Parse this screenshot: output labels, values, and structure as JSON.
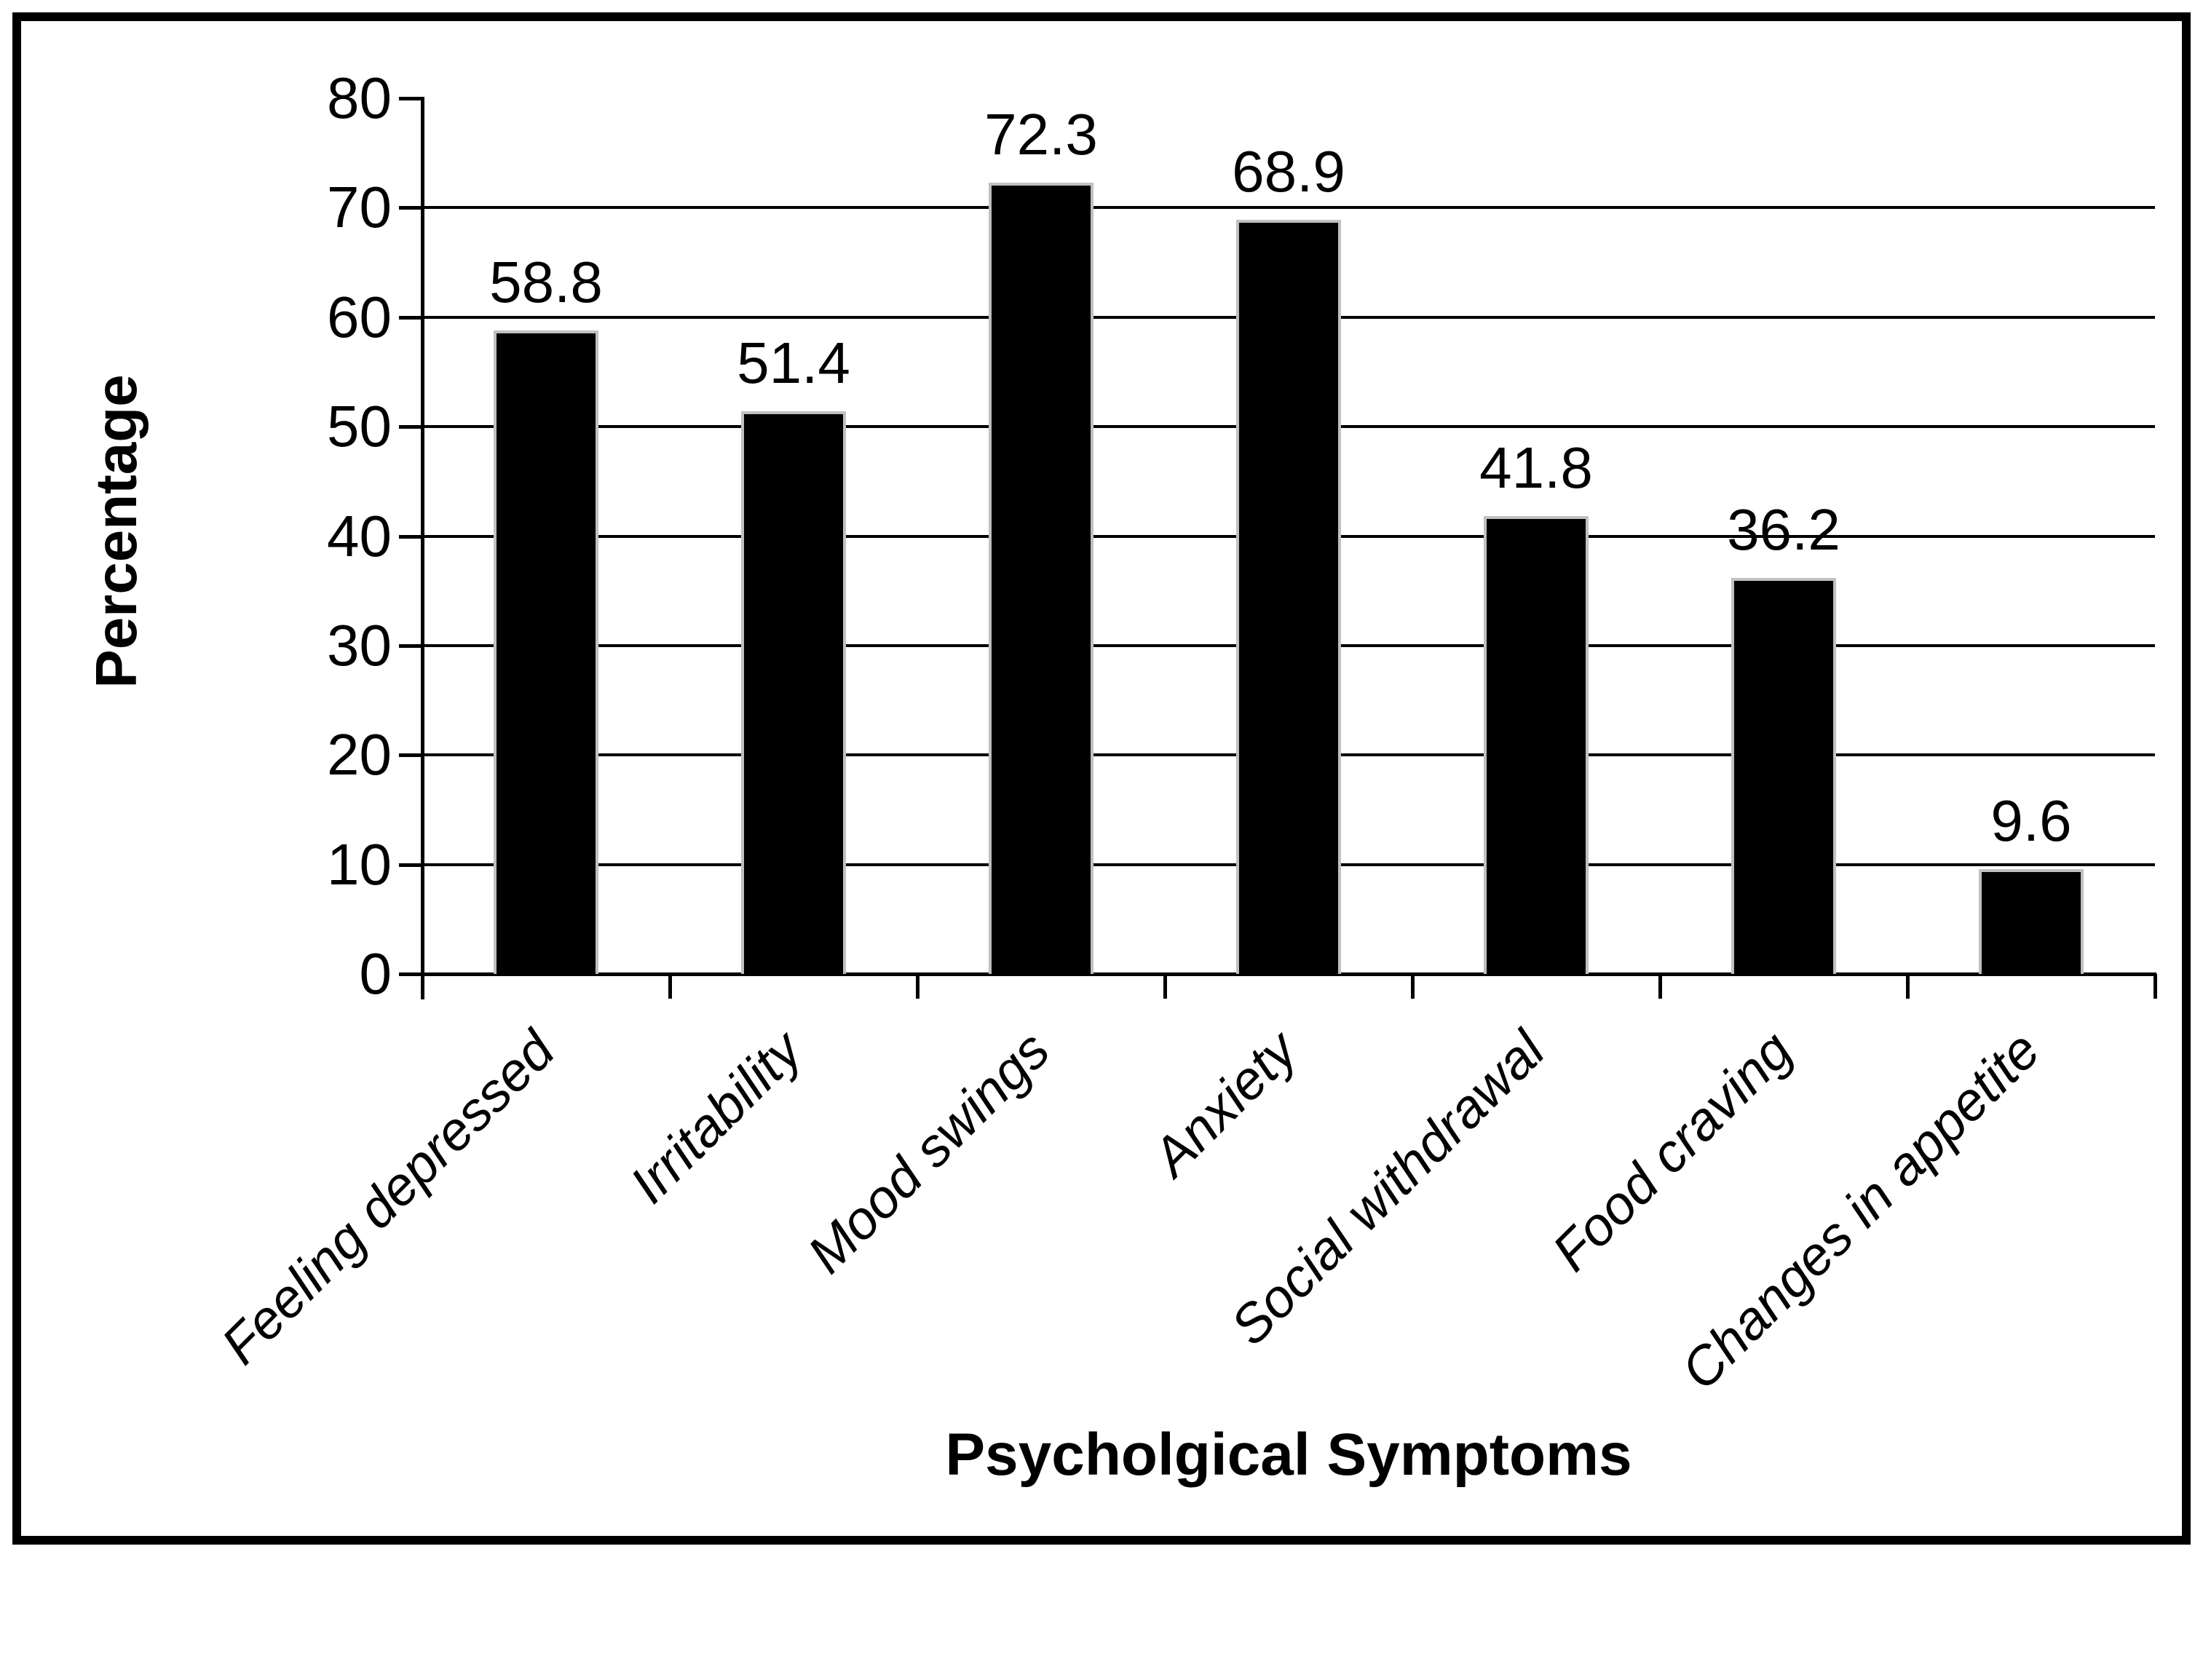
{
  "chart_data": {
    "type": "bar",
    "title": "",
    "categories": [
      "Feeling depressed",
      "Irritability",
      "Mood swings",
      "Anxiety",
      "Social withdrawal",
      "Food craving",
      "Changes in appetite"
    ],
    "values": [
      58.8,
      51.4,
      72.3,
      68.9,
      41.8,
      36.2,
      9.6
    ],
    "value_labels": [
      "58.8",
      "51.4",
      "72.3",
      "68.9",
      "41.8",
      "36.2",
      "9.6"
    ],
    "xlabel": "Psycholgical Symptoms",
    "ylabel": "Percentage",
    "ylim": [
      0,
      80
    ],
    "yticks": [
      0,
      10,
      20,
      30,
      40,
      50,
      60,
      70,
      80
    ],
    "grid": "horizontal",
    "legend_position": "none",
    "bar_color": "#000000",
    "bar_edge_color": "#c0c0c0",
    "gridline_color": "#000000",
    "background_color": "#ffffff",
    "category_label_style": "italic, rotated 45deg",
    "frame_border_color": "#000000"
  }
}
